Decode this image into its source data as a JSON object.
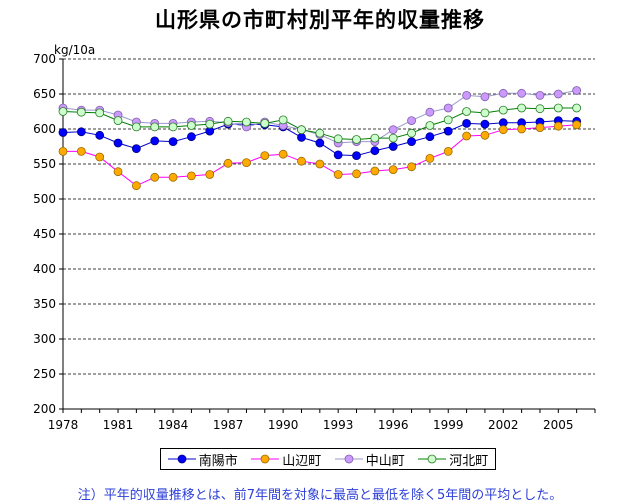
{
  "title": "山形県の市町村別平年的収量推移",
  "note": "注）平年的収量推移とは、前7年間を対象に最高と最低を除く5年間の平均とした。",
  "chart_data": {
    "type": "line",
    "title": "山形県の市町村別平年的収量推移",
    "ylabel": "kg/10a",
    "ylim": [
      200,
      700
    ],
    "yticks": [
      200,
      250,
      300,
      350,
      400,
      450,
      500,
      550,
      600,
      650,
      700
    ],
    "yticklabels": [
      "200",
      "250",
      "300",
      "350",
      "400",
      "450",
      "500",
      "550",
      "600",
      "650",
      "700"
    ],
    "x": [
      1978,
      1979,
      1980,
      1981,
      1982,
      1983,
      1984,
      1985,
      1986,
      1987,
      1988,
      1989,
      1990,
      1991,
      1992,
      1993,
      1994,
      1995,
      1996,
      1997,
      1998,
      1999,
      2000,
      2001,
      2002,
      2003,
      2004,
      2005,
      2006
    ],
    "xticks": [
      1978,
      1981,
      1984,
      1987,
      1990,
      1993,
      1996,
      1999,
      2002,
      2005
    ],
    "xticklabels": [
      "1978",
      "1981",
      "1984",
      "1987",
      "1990",
      "1993",
      "1996",
      "1999",
      "2002",
      "2005"
    ],
    "series": [
      {
        "name": "南陽市",
        "line": "#0000cc",
        "fill": "#0000ff",
        "stroke": "#000080",
        "values": [
          595,
          596,
          591,
          580,
          572,
          583,
          582,
          589,
          597,
          607,
          607,
          606,
          603,
          588,
          580,
          563,
          562,
          569,
          575,
          582,
          589,
          597,
          608,
          607,
          609,
          609,
          610,
          612,
          611
        ]
      },
      {
        "name": "山辺町",
        "line": "#ff00ff",
        "fill": "#ffaa00",
        "stroke": "#9c6a00",
        "values": [
          568,
          568,
          560,
          539,
          519,
          531,
          531,
          533,
          535,
          551,
          552,
          562,
          564,
          554,
          550,
          535,
          536,
          540,
          542,
          546,
          558,
          568,
          590,
          591,
          599,
          600,
          602,
          604,
          606
        ]
      },
      {
        "name": "中山町",
        "line": "#9999cc",
        "fill": "#cc99ff",
        "stroke": "#7f5fa8",
        "values": [
          630,
          627,
          627,
          620,
          610,
          608,
          608,
          610,
          611,
          609,
          603,
          610,
          605,
          599,
          592,
          580,
          582,
          582,
          599,
          612,
          624,
          630,
          648,
          646,
          651,
          651,
          648,
          650,
          655
        ]
      },
      {
        "name": "河北町",
        "line": "#008000",
        "fill": "#ccffcc",
        "stroke": "#2a7a2a",
        "values": [
          625,
          624,
          623,
          612,
          603,
          603,
          603,
          605,
          607,
          611,
          610,
          608,
          613,
          599,
          594,
          586,
          585,
          587,
          587,
          594,
          605,
          613,
          625,
          623,
          627,
          630,
          629,
          630,
          630
        ]
      }
    ]
  }
}
